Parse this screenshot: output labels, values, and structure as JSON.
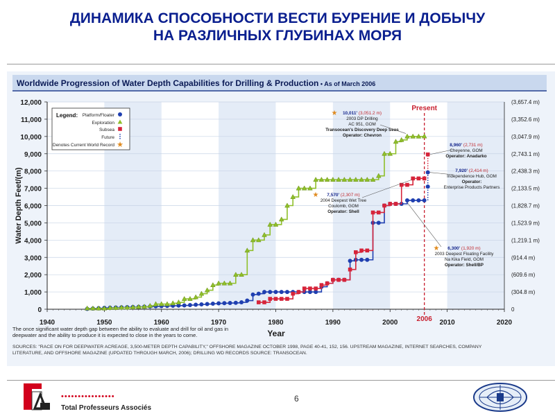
{
  "slide": {
    "title_line1": "ДИНАМИКА СПОСОБНОСТИ ВЕСТИ БУРЕНИЕ И ДОБЫЧУ",
    "title_line2": "НА РАЗЛИЧНЫХ ГЛУБИНАХ МОРЯ",
    "page_number": "6",
    "company": "Total Professeurs Associés",
    "dots": "••••••••••••••••"
  },
  "colors": {
    "title": "#0a1f8f",
    "platform": "#1f3fb0",
    "exploration": "#8fbf2a",
    "subsea": "#d6243a",
    "present": "#c81e2e",
    "axis_text": "#1a1a1a",
    "annotation_blue": "#15268c"
  },
  "chart_data": {
    "type": "line",
    "title": "Worldwide Progression of Water Depth Capabilities for Drilling & Production",
    "title_suffix": "• As of March 2006",
    "xlabel": "Year",
    "ylabel": "Water Depth Feet/(m)",
    "xlim": [
      1940,
      2020
    ],
    "ylim": [
      0,
      12000
    ],
    "x_ticks": [
      "1940",
      "1950",
      "1960",
      "1970",
      "1980",
      "1990",
      "2000",
      "2010",
      "2020"
    ],
    "y_ticks": [
      "0",
      "1,000",
      "2,000",
      "3,000",
      "4,000",
      "5,000",
      "6,000",
      "7,000",
      "8,000",
      "9,000",
      "10,000",
      "11,000",
      "12,000"
    ],
    "y_ticks_right": [
      "0",
      "(304.8 m)",
      "(609.6 m)",
      "(914.4 m)",
      "(1,219.1 m)",
      "(1,523.9 m)",
      "(1,828.7 m)",
      "(2,133.5 m)",
      "(2,438.3 m)",
      "(2,743.1 m)",
      "(3,047.9 m)",
      "(3,352.6 m)",
      "(3,657.4 m)"
    ],
    "grid": true,
    "legend": {
      "position": "top-left",
      "title": "Legend:",
      "items": [
        "Platform/Floater",
        "Exploration",
        "Subsea",
        "Future",
        "Denotes Current World Record"
      ]
    },
    "present_label": "Present",
    "present_year_label": "2006",
    "series": [
      {
        "name": "Platform/Floater",
        "x": [
          1947,
          1948,
          1949,
          1950,
          1951,
          1952,
          1953,
          1954,
          1955,
          1956,
          1957,
          1958,
          1959,
          1960,
          1961,
          1962,
          1963,
          1964,
          1965,
          1966,
          1967,
          1968,
          1969,
          1970,
          1971,
          1972,
          1973,
          1974,
          1975,
          1976,
          1977,
          1978,
          1979,
          1980,
          1981,
          1982,
          1983,
          1984,
          1985,
          1986,
          1987,
          1988,
          1989,
          1990,
          1991,
          1992,
          1993,
          1994,
          1995,
          1996,
          1997,
          1998,
          1999,
          2000,
          2001,
          2002,
          2003,
          2004,
          2005,
          2006
        ],
        "values": [
          20,
          40,
          60,
          80,
          90,
          100,
          110,
          120,
          130,
          140,
          150,
          160,
          170,
          180,
          190,
          200,
          210,
          220,
          240,
          260,
          280,
          300,
          320,
          340,
          350,
          360,
          370,
          400,
          500,
          850,
          900,
          1000,
          1000,
          1000,
          1000,
          1000,
          1000,
          1000,
          1000,
          1000,
          1000,
          1300,
          1500,
          1700,
          1700,
          1700,
          2800,
          2860,
          2860,
          2860,
          5000,
          5000,
          6000,
          6100,
          6100,
          6100,
          6300,
          6300,
          6300,
          6300
        ]
      },
      {
        "name": "Exploration",
        "x": [
          1947,
          1948,
          1949,
          1950,
          1951,
          1952,
          1953,
          1954,
          1955,
          1956,
          1957,
          1958,
          1959,
          1960,
          1961,
          1962,
          1963,
          1964,
          1965,
          1966,
          1967,
          1968,
          1969,
          1970,
          1971,
          1972,
          1973,
          1974,
          1975,
          1976,
          1977,
          1978,
          1979,
          1980,
          1981,
          1982,
          1983,
          1984,
          1985,
          1986,
          1987,
          1988,
          1989,
          1990,
          1991,
          1992,
          1993,
          1994,
          1995,
          1996,
          1997,
          1998,
          1999,
          2000,
          2001,
          2002,
          2003,
          2004,
          2005,
          2006
        ],
        "values": [
          50,
          50,
          50,
          50,
          80,
          80,
          100,
          100,
          120,
          140,
          150,
          200,
          300,
          300,
          300,
          350,
          400,
          600,
          600,
          700,
          900,
          1100,
          1400,
          1500,
          1500,
          1500,
          2000,
          2000,
          3400,
          4000,
          4000,
          4300,
          4900,
          4900,
          5200,
          6000,
          6500,
          7000,
          7000,
          7000,
          7500,
          7500,
          7500,
          7500,
          7500,
          7500,
          7500,
          7500,
          7500,
          7500,
          7500,
          7720,
          9000,
          9000,
          9700,
          9800,
          10000,
          10000,
          10000,
          10011
        ]
      },
      {
        "name": "Subsea",
        "x": [
          1977,
          1978,
          1979,
          1980,
          1981,
          1982,
          1983,
          1984,
          1985,
          1986,
          1987,
          1988,
          1989,
          1990,
          1991,
          1992,
          1993,
          1994,
          1995,
          1996,
          1997,
          1998,
          1999,
          2000,
          2001,
          2002,
          2003,
          2004,
          2005,
          2006
        ],
        "values": [
          400,
          400,
          600,
          600,
          600,
          600,
          900,
          1000,
          1200,
          1200,
          1200,
          1400,
          1500,
          1700,
          1700,
          1700,
          2300,
          3300,
          3400,
          3400,
          5600,
          5600,
          6000,
          6100,
          6100,
          7200,
          7200,
          7570,
          7570,
          7570
        ]
      }
    ],
    "future": [
      {
        "name": "Cheyenne future",
        "x": 2006,
        "from": 7570,
        "to": 8960
      },
      {
        "name": "Independence future",
        "x": 2006,
        "from": 6300,
        "to": 7920
      }
    ],
    "annotations": [
      {
        "value": "10,011'",
        "metric": "(3,051.2 m)",
        "lines": [
          "2003 DP Drilling",
          "AC 951, GOM",
          "Transocean's Discovery Deep Seas",
          "Operator: Chevron"
        ],
        "x": 2003,
        "y": 10011
      },
      {
        "value": "8,960'",
        "metric": "(2,731 m)",
        "lines": [
          "Cheyenne, GOM",
          "Operator: Anadarko"
        ],
        "x": 2006,
        "y": 8960
      },
      {
        "value": "7,920'",
        "metric": "(2,414 m)",
        "lines": [
          "Independence Hub, GOM",
          "Operator:",
          "Enterprise Products Partners"
        ],
        "x": 2006,
        "y": 7920
      },
      {
        "value": "7,570'",
        "metric": "(2,307 m)",
        "lines": [
          "2004 Deepest Wet Tree",
          "Coulomb, GOM",
          "Operator: Shell"
        ],
        "x": 2004,
        "y": 7570
      },
      {
        "value": "6,300'",
        "metric": "(1,920 m)",
        "lines": [
          "2003 Deepest Floating Facility",
          "Na Kika Field, GOM",
          "Operator: Shell/BP"
        ],
        "x": 2003,
        "y": 6300
      }
    ],
    "note": "The once significant water depth gap between the ability to evaluate and drill for oil and gas in deepwater and the ability to produce it is expected to close in the years to come.",
    "sources": "SOURCES: \"RACE ON FOR DEEPWATER ACREAGE, 3,500-METER DEPTH CAPABILITY,\" OFFSHORE MAGAZINE OCTOBER 1998, PAGE 40-41, 152, 156. UPSTREAM MAGAZINE, INTERNET SEARCHES, COMPANY LITERATURE, AND OFFSHORE MAGAZINE (UPDATED THROUGH MARCH, 2006); DRILLING WD RECORDS SOURCE: TRANSOCEAN."
  }
}
